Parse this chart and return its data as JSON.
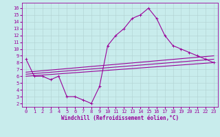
{
  "xlabel": "Windchill (Refroidissement éolien,°C)",
  "bg_color": "#c8ecec",
  "line_color": "#990099",
  "grid_color": "#b0d0d0",
  "x_ticks": [
    0,
    1,
    2,
    3,
    4,
    5,
    6,
    7,
    8,
    9,
    10,
    11,
    12,
    13,
    14,
    15,
    16,
    17,
    18,
    19,
    20,
    21,
    22,
    23
  ],
  "y_ticks": [
    2,
    3,
    4,
    5,
    6,
    7,
    8,
    9,
    10,
    11,
    12,
    13,
    14,
    15,
    16
  ],
  "ylim": [
    1.5,
    16.8
  ],
  "xlim": [
    -0.5,
    23.5
  ],
  "line1_x": [
    0,
    1,
    2,
    3,
    4,
    5,
    6,
    7,
    8,
    9,
    10,
    11,
    12,
    13,
    14,
    15,
    16,
    17,
    18,
    19,
    20,
    21,
    22,
    23
  ],
  "line1_y": [
    8.5,
    6.0,
    6.0,
    5.5,
    6.0,
    3.0,
    3.0,
    2.5,
    2.0,
    4.5,
    10.5,
    12.0,
    13.0,
    14.5,
    15.0,
    16.0,
    14.5,
    12.0,
    10.5,
    10.0,
    9.5,
    9.0,
    8.5,
    8.0
  ],
  "line2_x": [
    0,
    23
  ],
  "line2_y": [
    6.3,
    8.5
  ],
  "line3_x": [
    0,
    23
  ],
  "line3_y": [
    6.0,
    8.0
  ],
  "line4_x": [
    0,
    23
  ],
  "line4_y": [
    6.6,
    9.0
  ],
  "marker": "+",
  "markersize": 3,
  "linewidth": 0.8,
  "tick_fontsize": 5,
  "xlabel_fontsize": 5.5
}
